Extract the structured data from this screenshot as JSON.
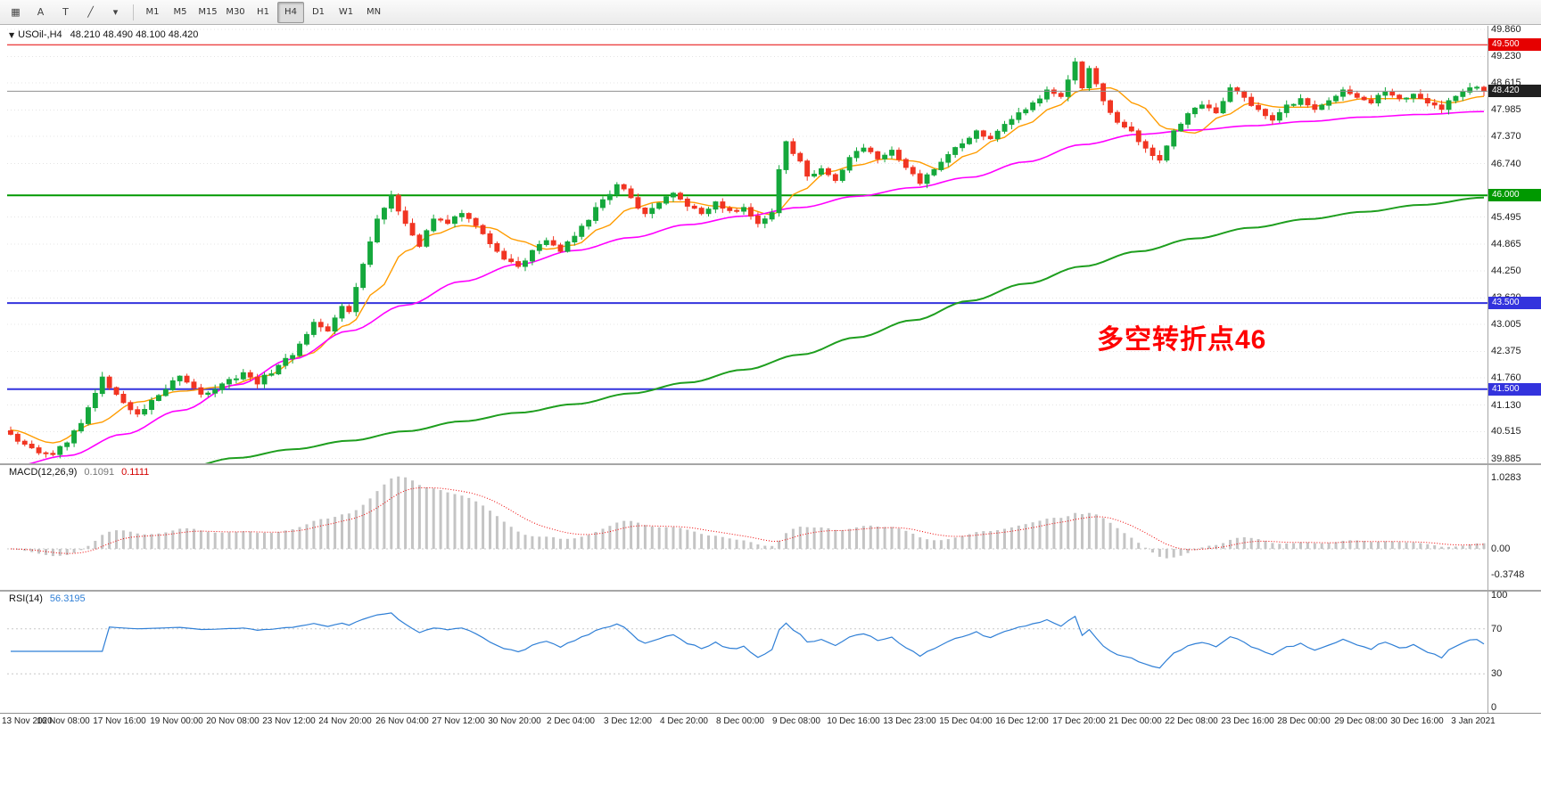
{
  "toolbar": {
    "tools": [
      {
        "name": "windows-grid-icon",
        "glyph": "▦"
      },
      {
        "name": "text-tool-a-button",
        "glyph": "A"
      },
      {
        "name": "text-tool-t-button",
        "glyph": "T"
      },
      {
        "name": "draw-objects-icon",
        "glyph": "╱"
      },
      {
        "name": "draw-objects-dropdown-icon",
        "glyph": "▾"
      }
    ],
    "timeframes": [
      "M1",
      "M5",
      "M15",
      "M30",
      "H1",
      "H4",
      "D1",
      "W1",
      "MN"
    ],
    "active_timeframe": "H4"
  },
  "chart_data": {
    "type": "candlestick",
    "title": "USOil-,H4",
    "one_click_glyph": "▼",
    "ohlc_text": "48.210 48.490 48.100 48.420",
    "n_bars": 210,
    "colors": {
      "up": "#15a83c",
      "down": "#f13522",
      "background": "#ffffff",
      "grid": "#e4e4e4"
    },
    "price_axis": {
      "visible_max": 49.86,
      "visible_min": 39.885,
      "ticks": [
        "49.860",
        "49.230",
        "48.615",
        "47.985",
        "47.370",
        "46.740",
        "45.495",
        "44.865",
        "44.250",
        "43.620",
        "43.005",
        "42.375",
        "41.760",
        "41.130",
        "40.515",
        "39.885"
      ]
    },
    "current_price": {
      "label": "48.420",
      "value": 48.42,
      "badge_color": "#202020"
    },
    "horizontal_lines": [
      {
        "label": "49.500",
        "price": 49.5,
        "color": "#e60000",
        "width": 1
      },
      {
        "label": "46.000",
        "price": 46.0,
        "color": "#009900",
        "width": 2
      },
      {
        "label": "43.500",
        "price": 43.5,
        "color": "#3333dd",
        "width": 2
      },
      {
        "label": "41.500",
        "price": 41.5,
        "color": "#3333dd",
        "width": 2
      }
    ],
    "annotation": {
      "text": "多空转折点46",
      "color": "#ff0000"
    },
    "close_waypoints": [
      [
        0,
        40.45
      ],
      [
        2,
        40.22
      ],
      [
        4,
        40.02
      ],
      [
        6,
        39.98
      ],
      [
        8,
        40.25
      ],
      [
        10,
        40.7
      ],
      [
        12,
        41.4
      ],
      [
        13,
        41.78
      ],
      [
        15,
        41.38
      ],
      [
        18,
        40.92
      ],
      [
        21,
        41.35
      ],
      [
        24,
        41.8
      ],
      [
        27,
        41.38
      ],
      [
        30,
        41.62
      ],
      [
        33,
        41.88
      ],
      [
        35,
        41.62
      ],
      [
        38,
        42.05
      ],
      [
        40,
        42.28
      ],
      [
        43,
        43.05
      ],
      [
        45,
        42.85
      ],
      [
        47,
        43.42
      ],
      [
        48,
        43.3
      ],
      [
        50,
        44.4
      ],
      [
        52,
        45.45
      ],
      [
        54,
        46.0
      ],
      [
        56,
        45.35
      ],
      [
        58,
        44.82
      ],
      [
        60,
        45.45
      ],
      [
        62,
        45.35
      ],
      [
        64,
        45.58
      ],
      [
        66,
        45.3
      ],
      [
        68,
        44.88
      ],
      [
        70,
        44.52
      ],
      [
        72,
        44.35
      ],
      [
        74,
        44.72
      ],
      [
        76,
        44.95
      ],
      [
        78,
        44.7
      ],
      [
        80,
        45.05
      ],
      [
        82,
        45.42
      ],
      [
        84,
        45.9
      ],
      [
        86,
        46.25
      ],
      [
        88,
        45.95
      ],
      [
        90,
        45.58
      ],
      [
        92,
        45.82
      ],
      [
        94,
        46.05
      ],
      [
        96,
        45.75
      ],
      [
        98,
        45.58
      ],
      [
        100,
        45.85
      ],
      [
        102,
        45.65
      ],
      [
        104,
        45.72
      ],
      [
        106,
        45.35
      ],
      [
        108,
        45.6
      ],
      [
        109,
        46.6
      ],
      [
        110,
        47.25
      ],
      [
        112,
        46.8
      ],
      [
        113,
        46.45
      ],
      [
        115,
        46.62
      ],
      [
        117,
        46.35
      ],
      [
        119,
        46.88
      ],
      [
        121,
        47.1
      ],
      [
        123,
        46.85
      ],
      [
        125,
        47.05
      ],
      [
        127,
        46.65
      ],
      [
        129,
        46.28
      ],
      [
        131,
        46.6
      ],
      [
        133,
        46.95
      ],
      [
        135,
        47.2
      ],
      [
        137,
        47.5
      ],
      [
        139,
        47.32
      ],
      [
        141,
        47.65
      ],
      [
        143,
        47.92
      ],
      [
        145,
        48.15
      ],
      [
        147,
        48.45
      ],
      [
        149,
        48.3
      ],
      [
        151,
        49.1
      ],
      [
        152,
        48.5
      ],
      [
        153,
        48.95
      ],
      [
        155,
        48.2
      ],
      [
        157,
        47.7
      ],
      [
        159,
        47.5
      ],
      [
        161,
        47.1
      ],
      [
        163,
        46.82
      ],
      [
        165,
        47.5
      ],
      [
        167,
        47.9
      ],
      [
        169,
        48.1
      ],
      [
        171,
        47.92
      ],
      [
        173,
        48.5
      ],
      [
        175,
        48.28
      ],
      [
        177,
        48.0
      ],
      [
        179,
        47.75
      ],
      [
        181,
        48.1
      ],
      [
        183,
        48.25
      ],
      [
        185,
        48.0
      ],
      [
        187,
        48.2
      ],
      [
        189,
        48.45
      ],
      [
        191,
        48.28
      ],
      [
        193,
        48.15
      ],
      [
        195,
        48.4
      ],
      [
        197,
        48.25
      ],
      [
        199,
        48.35
      ],
      [
        201,
        48.15
      ],
      [
        203,
        48.0
      ],
      [
        205,
        48.3
      ],
      [
        207,
        48.5
      ],
      [
        209,
        48.42
      ]
    ],
    "moving_averages": [
      {
        "name": "ma-fast-orange",
        "color": "#ff9c00",
        "width": 1.4,
        "waypoints": [
          [
            0,
            40.55
          ],
          [
            6,
            40.25
          ],
          [
            12,
            40.7
          ],
          [
            18,
            41.2
          ],
          [
            24,
            41.45
          ],
          [
            30,
            41.55
          ],
          [
            36,
            41.8
          ],
          [
            42,
            42.3
          ],
          [
            48,
            43.0
          ],
          [
            52,
            43.8
          ],
          [
            56,
            44.7
          ],
          [
            60,
            45.1
          ],
          [
            64,
            45.3
          ],
          [
            68,
            45.25
          ],
          [
            72,
            44.95
          ],
          [
            76,
            44.75
          ],
          [
            80,
            44.85
          ],
          [
            84,
            45.25
          ],
          [
            88,
            45.7
          ],
          [
            92,
            45.85
          ],
          [
            96,
            45.85
          ],
          [
            100,
            45.75
          ],
          [
            104,
            45.7
          ],
          [
            108,
            45.55
          ],
          [
            112,
            46.1
          ],
          [
            116,
            46.55
          ],
          [
            120,
            46.7
          ],
          [
            124,
            46.85
          ],
          [
            128,
            46.8
          ],
          [
            132,
            46.6
          ],
          [
            136,
            46.95
          ],
          [
            140,
            47.3
          ],
          [
            144,
            47.65
          ],
          [
            148,
            48.05
          ],
          [
            152,
            48.45
          ],
          [
            156,
            48.5
          ],
          [
            160,
            48.1
          ],
          [
            164,
            47.55
          ],
          [
            168,
            47.45
          ],
          [
            172,
            47.85
          ],
          [
            176,
            48.15
          ],
          [
            180,
            48.05
          ],
          [
            184,
            48.05
          ],
          [
            188,
            48.15
          ],
          [
            192,
            48.25
          ],
          [
            196,
            48.25
          ],
          [
            200,
            48.25
          ],
          [
            204,
            48.15
          ],
          [
            209,
            48.3
          ]
        ]
      },
      {
        "name": "ma-mid-magenta",
        "color": "#ff00ff",
        "width": 1.6,
        "waypoints": [
          [
            0,
            39.7
          ],
          [
            8,
            39.95
          ],
          [
            16,
            40.45
          ],
          [
            24,
            41.0
          ],
          [
            32,
            41.6
          ],
          [
            40,
            42.2
          ],
          [
            48,
            42.85
          ],
          [
            56,
            43.45
          ],
          [
            64,
            44.0
          ],
          [
            72,
            44.4
          ],
          [
            80,
            44.72
          ],
          [
            88,
            45.02
          ],
          [
            96,
            45.32
          ],
          [
            104,
            45.52
          ],
          [
            112,
            45.72
          ],
          [
            120,
            45.98
          ],
          [
            128,
            46.18
          ],
          [
            136,
            46.42
          ],
          [
            144,
            46.78
          ],
          [
            152,
            47.18
          ],
          [
            160,
            47.42
          ],
          [
            168,
            47.52
          ],
          [
            176,
            47.62
          ],
          [
            184,
            47.72
          ],
          [
            192,
            47.82
          ],
          [
            200,
            47.88
          ],
          [
            209,
            47.95
          ]
        ]
      },
      {
        "name": "ma-slow-green",
        "color": "#1e9e1e",
        "width": 2,
        "waypoints": [
          [
            0,
            39.1
          ],
          [
            12,
            39.35
          ],
          [
            24,
            39.65
          ],
          [
            32,
            39.9
          ],
          [
            40,
            40.1
          ],
          [
            48,
            40.3
          ],
          [
            56,
            40.52
          ],
          [
            64,
            40.75
          ],
          [
            72,
            40.95
          ],
          [
            80,
            41.15
          ],
          [
            88,
            41.4
          ],
          [
            96,
            41.65
          ],
          [
            104,
            41.95
          ],
          [
            112,
            42.3
          ],
          [
            120,
            42.7
          ],
          [
            128,
            43.1
          ],
          [
            136,
            43.55
          ],
          [
            144,
            43.95
          ],
          [
            152,
            44.35
          ],
          [
            160,
            44.7
          ],
          [
            168,
            45.0
          ],
          [
            176,
            45.25
          ],
          [
            184,
            45.45
          ],
          [
            192,
            45.62
          ],
          [
            200,
            45.78
          ],
          [
            209,
            45.95
          ]
        ]
      }
    ],
    "macd": {
      "label": "MACD(12,26,9)",
      "params": [
        12,
        26,
        9
      ],
      "value_main": "0.1091",
      "value_signal": "0.1111",
      "axis_labels": [
        "1.0283",
        "0.00",
        "-0.3748"
      ],
      "histogram_color": "#c4c4c4",
      "signal_color": "#ee0000"
    },
    "rsi": {
      "label": "RSI(14)",
      "period": 14,
      "value": "56.3195",
      "color": "#2f7fd6",
      "axis_labels": [
        "100",
        "70",
        "30",
        "0"
      ],
      "level_lines": [
        70,
        30
      ]
    },
    "x_axis": {
      "bars_per_label": 8,
      "labels": [
        "13 Nov 2020",
        "16 Nov 08:00",
        "17 Nov 16:00",
        "19 Nov 00:00",
        "20 Nov 08:00",
        "23 Nov 12:00",
        "24 Nov 20:00",
        "26 Nov 04:00",
        "27 Nov 12:00",
        "30 Nov 20:00",
        "2 Dec 04:00",
        "3 Dec 12:00",
        "4 Dec 20:00",
        "8 Dec 00:00",
        "9 Dec 08:00",
        "10 Dec 16:00",
        "13 Dec 23:00",
        "15 Dec 04:00",
        "16 Dec 12:00",
        "17 Dec 20:00",
        "21 Dec 00:00",
        "22 Dec 08:00",
        "23 Dec 16:00",
        "28 Dec 00:00",
        "29 Dec 08:00",
        "30 Dec 16:00",
        "3 Jan 2021"
      ]
    }
  }
}
